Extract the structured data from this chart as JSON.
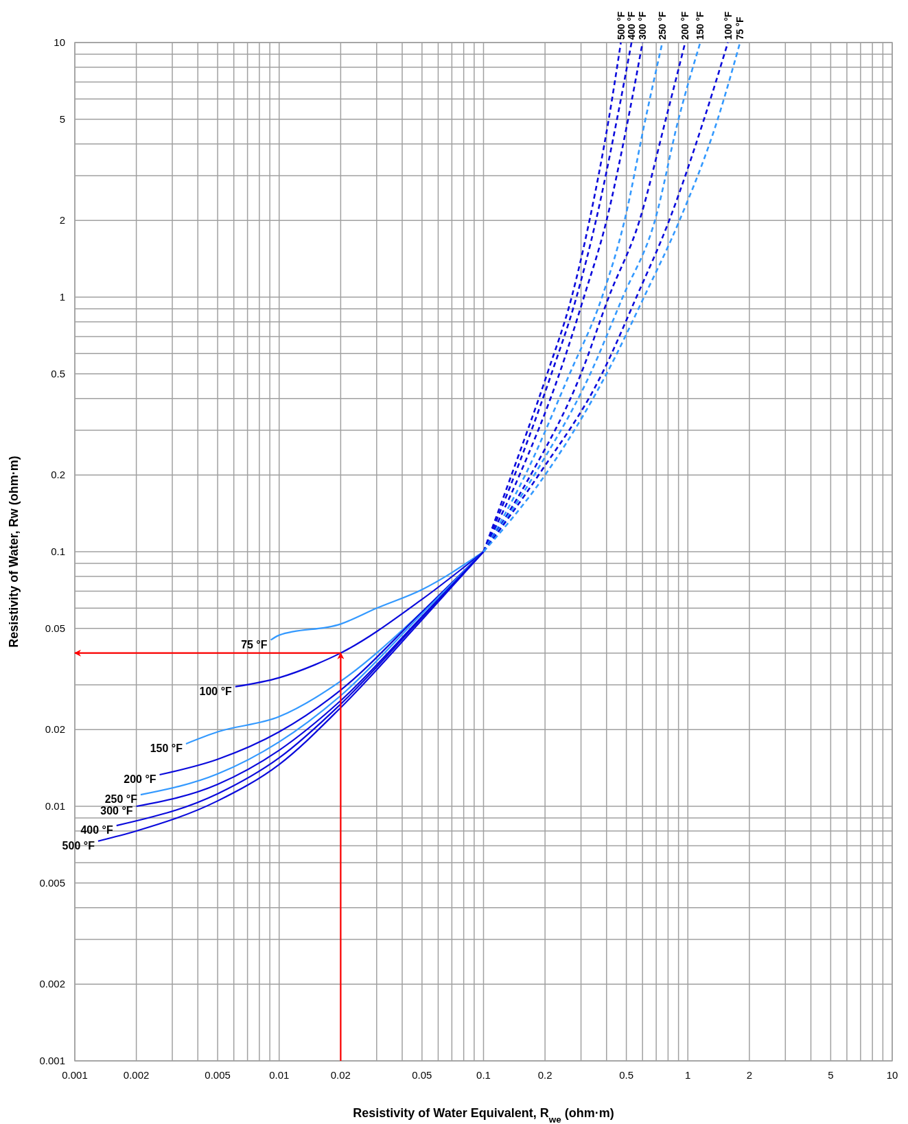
{
  "chart_data": {
    "type": "line",
    "log": "xy",
    "grid": true,
    "xlabel": "Resistivity of Water Equivalent, R$_{we}$ (ohm·m)",
    "ylabel": "Resistivity of Water, Rw (ohm·m)",
    "xlim": [
      0.001,
      10
    ],
    "ylim": [
      0.001,
      10
    ],
    "xticks": [
      0.001,
      0.002,
      {
        "value": 0.003,
        "label": null
      },
      {
        "value": 0.004,
        "label": null
      },
      0.005,
      {
        "value": 0.006,
        "label": null
      },
      {
        "value": 0.007,
        "label": null
      },
      {
        "value": 0.008,
        "label": null
      },
      {
        "value": 0.009,
        "label": null
      },
      0.01,
      0.02,
      {
        "value": 0.03,
        "label": null
      },
      {
        "value": 0.04,
        "label": null
      },
      0.05,
      {
        "value": 0.06,
        "label": null
      },
      {
        "value": 0.07,
        "label": null
      },
      {
        "value": 0.08,
        "label": null
      },
      {
        "value": 0.09,
        "label": null
      },
      0.1,
      0.2,
      {
        "value": 0.3,
        "label": null
      },
      {
        "value": 0.4,
        "label": null
      },
      0.5,
      {
        "value": 0.6,
        "label": null
      },
      {
        "value": 0.7,
        "label": null
      },
      {
        "value": 0.8,
        "label": null
      },
      {
        "value": 0.9,
        "label": null
      },
      1,
      2,
      {
        "value": 3,
        "label": null
      },
      {
        "value": 4,
        "label": null
      },
      5,
      {
        "value": 6,
        "label": null
      },
      {
        "value": 7,
        "label": null
      },
      {
        "value": 8,
        "label": null
      },
      {
        "value": 9,
        "label": null
      },
      10
    ],
    "yticks": [
      0.001,
      0.002,
      {
        "value": 0.003,
        "label": null
      },
      {
        "value": 0.004,
        "label": null
      },
      0.005,
      {
        "value": 0.006,
        "label": null
      },
      {
        "value": 0.007,
        "label": null
      },
      {
        "value": 0.008,
        "label": null
      },
      {
        "value": 0.009,
        "label": null
      },
      0.01,
      0.02,
      {
        "value": 0.03,
        "label": null
      },
      {
        "value": 0.04,
        "label": null
      },
      0.05,
      {
        "value": 0.06,
        "label": null
      },
      {
        "value": 0.07,
        "label": null
      },
      {
        "value": 0.08,
        "label": null
      },
      {
        "value": 0.09,
        "label": null
      },
      0.1,
      0.2,
      {
        "value": 0.3,
        "label": null
      },
      {
        "value": 0.4,
        "label": null
      },
      0.5,
      {
        "value": 0.6,
        "label": null
      },
      {
        "value": 0.7,
        "label": null
      },
      {
        "value": 0.8,
        "label": null
      },
      {
        "value": 0.9,
        "label": null
      },
      1,
      2,
      {
        "value": 3,
        "label": null
      },
      {
        "value": 4,
        "label": null
      },
      5,
      {
        "value": 6,
        "label": null
      },
      {
        "value": 7,
        "label": null
      },
      {
        "value": 8,
        "label": null
      },
      {
        "value": 9,
        "label": null
      },
      10
    ],
    "series": [
      {
        "name": "75 °F",
        "color": "#3399ff",
        "line_style": "solid",
        "x": [
          0.0091,
          0.01,
          0.02,
          0.03,
          0.05,
          0.1
        ],
        "values": [
          0.045,
          0.047,
          0.052,
          0.06,
          0.071,
          0.1
        ]
      },
      {
        "name": "100 °F",
        "color": "#0a0adc",
        "line_style": "solid",
        "x": [
          0.0061,
          0.01,
          0.015,
          0.02,
          0.05,
          0.1
        ],
        "values": [
          0.0295,
          0.032,
          0.036,
          0.04,
          0.065,
          0.1
        ]
      },
      {
        "name": "150 °F",
        "color": "#3399ff",
        "line_style": "solid",
        "x": [
          0.0035,
          0.005,
          0.01,
          0.02,
          0.05,
          0.1
        ],
        "values": [
          0.0176,
          0.0196,
          0.0225,
          0.031,
          0.058,
          0.1
        ]
      },
      {
        "name": "200 °F",
        "color": "#0a0adc",
        "line_style": "solid",
        "x": [
          0.0026,
          0.005,
          0.01,
          0.02,
          0.05,
          0.1
        ],
        "values": [
          0.0133,
          0.0153,
          0.0196,
          0.0286,
          0.058,
          0.1
        ]
      },
      {
        "name": "250 °F",
        "color": "#3399ff",
        "line_style": "solid",
        "x": [
          0.0021,
          0.005,
          0.01,
          0.02,
          0.05,
          0.1
        ],
        "values": [
          0.0111,
          0.0134,
          0.0179,
          0.0272,
          0.057,
          0.1
        ]
      },
      {
        "name": "300 °F",
        "color": "#0a0adc",
        "line_style": "solid",
        "x": [
          0.002,
          0.005,
          0.01,
          0.02,
          0.05,
          0.1
        ],
        "values": [
          0.01,
          0.0122,
          0.0166,
          0.026,
          0.0556,
          0.1
        ]
      },
      {
        "name": "400 °F",
        "color": "#0a0adc",
        "line_style": "solid",
        "x": [
          0.0016,
          0.005,
          0.01,
          0.02,
          0.05,
          0.1
        ],
        "values": [
          0.0084,
          0.0112,
          0.0155,
          0.0252,
          0.055,
          0.1
        ]
      },
      {
        "name": "500 °F",
        "color": "#0a0adc",
        "line_style": "solid",
        "x": [
          0.0013,
          0.002,
          0.005,
          0.01,
          0.02,
          0.05,
          0.1
        ],
        "values": [
          0.0073,
          0.008,
          0.0105,
          0.0146,
          0.0244,
          0.054,
          0.1
        ]
      },
      {
        "name": "500 °F",
        "color": "#0a0adc",
        "line_style": "dashed",
        "x": [
          0.1,
          0.137,
          0.205,
          0.27,
          0.33,
          0.41,
          0.47
        ],
        "values": [
          0.1,
          0.2,
          0.5,
          1,
          2,
          5,
          10
        ]
      },
      {
        "name": "400 °F",
        "color": "#0a0adc",
        "line_style": "dashed",
        "x": [
          0.1,
          0.142,
          0.215,
          0.285,
          0.355,
          0.45,
          0.53
        ],
        "values": [
          0.1,
          0.2,
          0.5,
          1,
          2,
          5,
          10
        ]
      },
      {
        "name": "300 °F",
        "color": "#0a0adc",
        "line_style": "dashed",
        "x": [
          0.1,
          0.15,
          0.235,
          0.31,
          0.4,
          0.51,
          0.6
        ],
        "values": [
          0.1,
          0.2,
          0.5,
          1,
          2,
          5,
          10
        ]
      },
      {
        "name": "250 °F",
        "color": "#3399ff",
        "line_style": "dashed",
        "x": [
          0.1,
          0.16,
          0.264,
          0.38,
          0.49,
          0.62,
          0.75
        ],
        "values": [
          0.1,
          0.2,
          0.5,
          1,
          2,
          5,
          10
        ]
      },
      {
        "name": "200 °F",
        "color": "#0a0adc",
        "line_style": "dashed",
        "x": [
          0.1,
          0.17,
          0.3,
          0.41,
          0.58,
          0.78,
          0.97
        ],
        "values": [
          0.1,
          0.2,
          0.5,
          1,
          2,
          5,
          10
        ]
      },
      {
        "name": "150 °F",
        "color": "#3399ff",
        "line_style": "dashed",
        "x": [
          0.1,
          0.177,
          0.333,
          0.48,
          0.69,
          0.9,
          1.15
        ],
        "values": [
          0.1,
          0.2,
          0.5,
          1,
          2,
          5,
          10
        ]
      },
      {
        "name": "100 °F",
        "color": "#0a0adc",
        "line_style": "dashed",
        "x": [
          0.1,
          0.186,
          0.38,
          0.56,
          0.81,
          1.2,
          1.57
        ],
        "values": [
          0.1,
          0.2,
          0.5,
          1,
          2,
          5,
          10
        ]
      },
      {
        "name": "75 °F",
        "color": "#3399ff",
        "line_style": "dashed",
        "x": [
          0.1,
          0.2,
          0.4,
          0.61,
          0.91,
          1.4,
          1.8
        ],
        "values": [
          0.1,
          0.2,
          0.5,
          1,
          2,
          5,
          10
        ]
      },
      {
        "color": "#ff0000",
        "line_style": "solid",
        "x": [
          0.02,
          0.02
        ],
        "values": [
          0.001,
          0.04
        ]
      },
      {
        "color": "#ff0000",
        "line_style": "solid",
        "x": [
          0.02,
          0.001
        ],
        "values": [
          0.04,
          0.04
        ]
      }
    ]
  }
}
